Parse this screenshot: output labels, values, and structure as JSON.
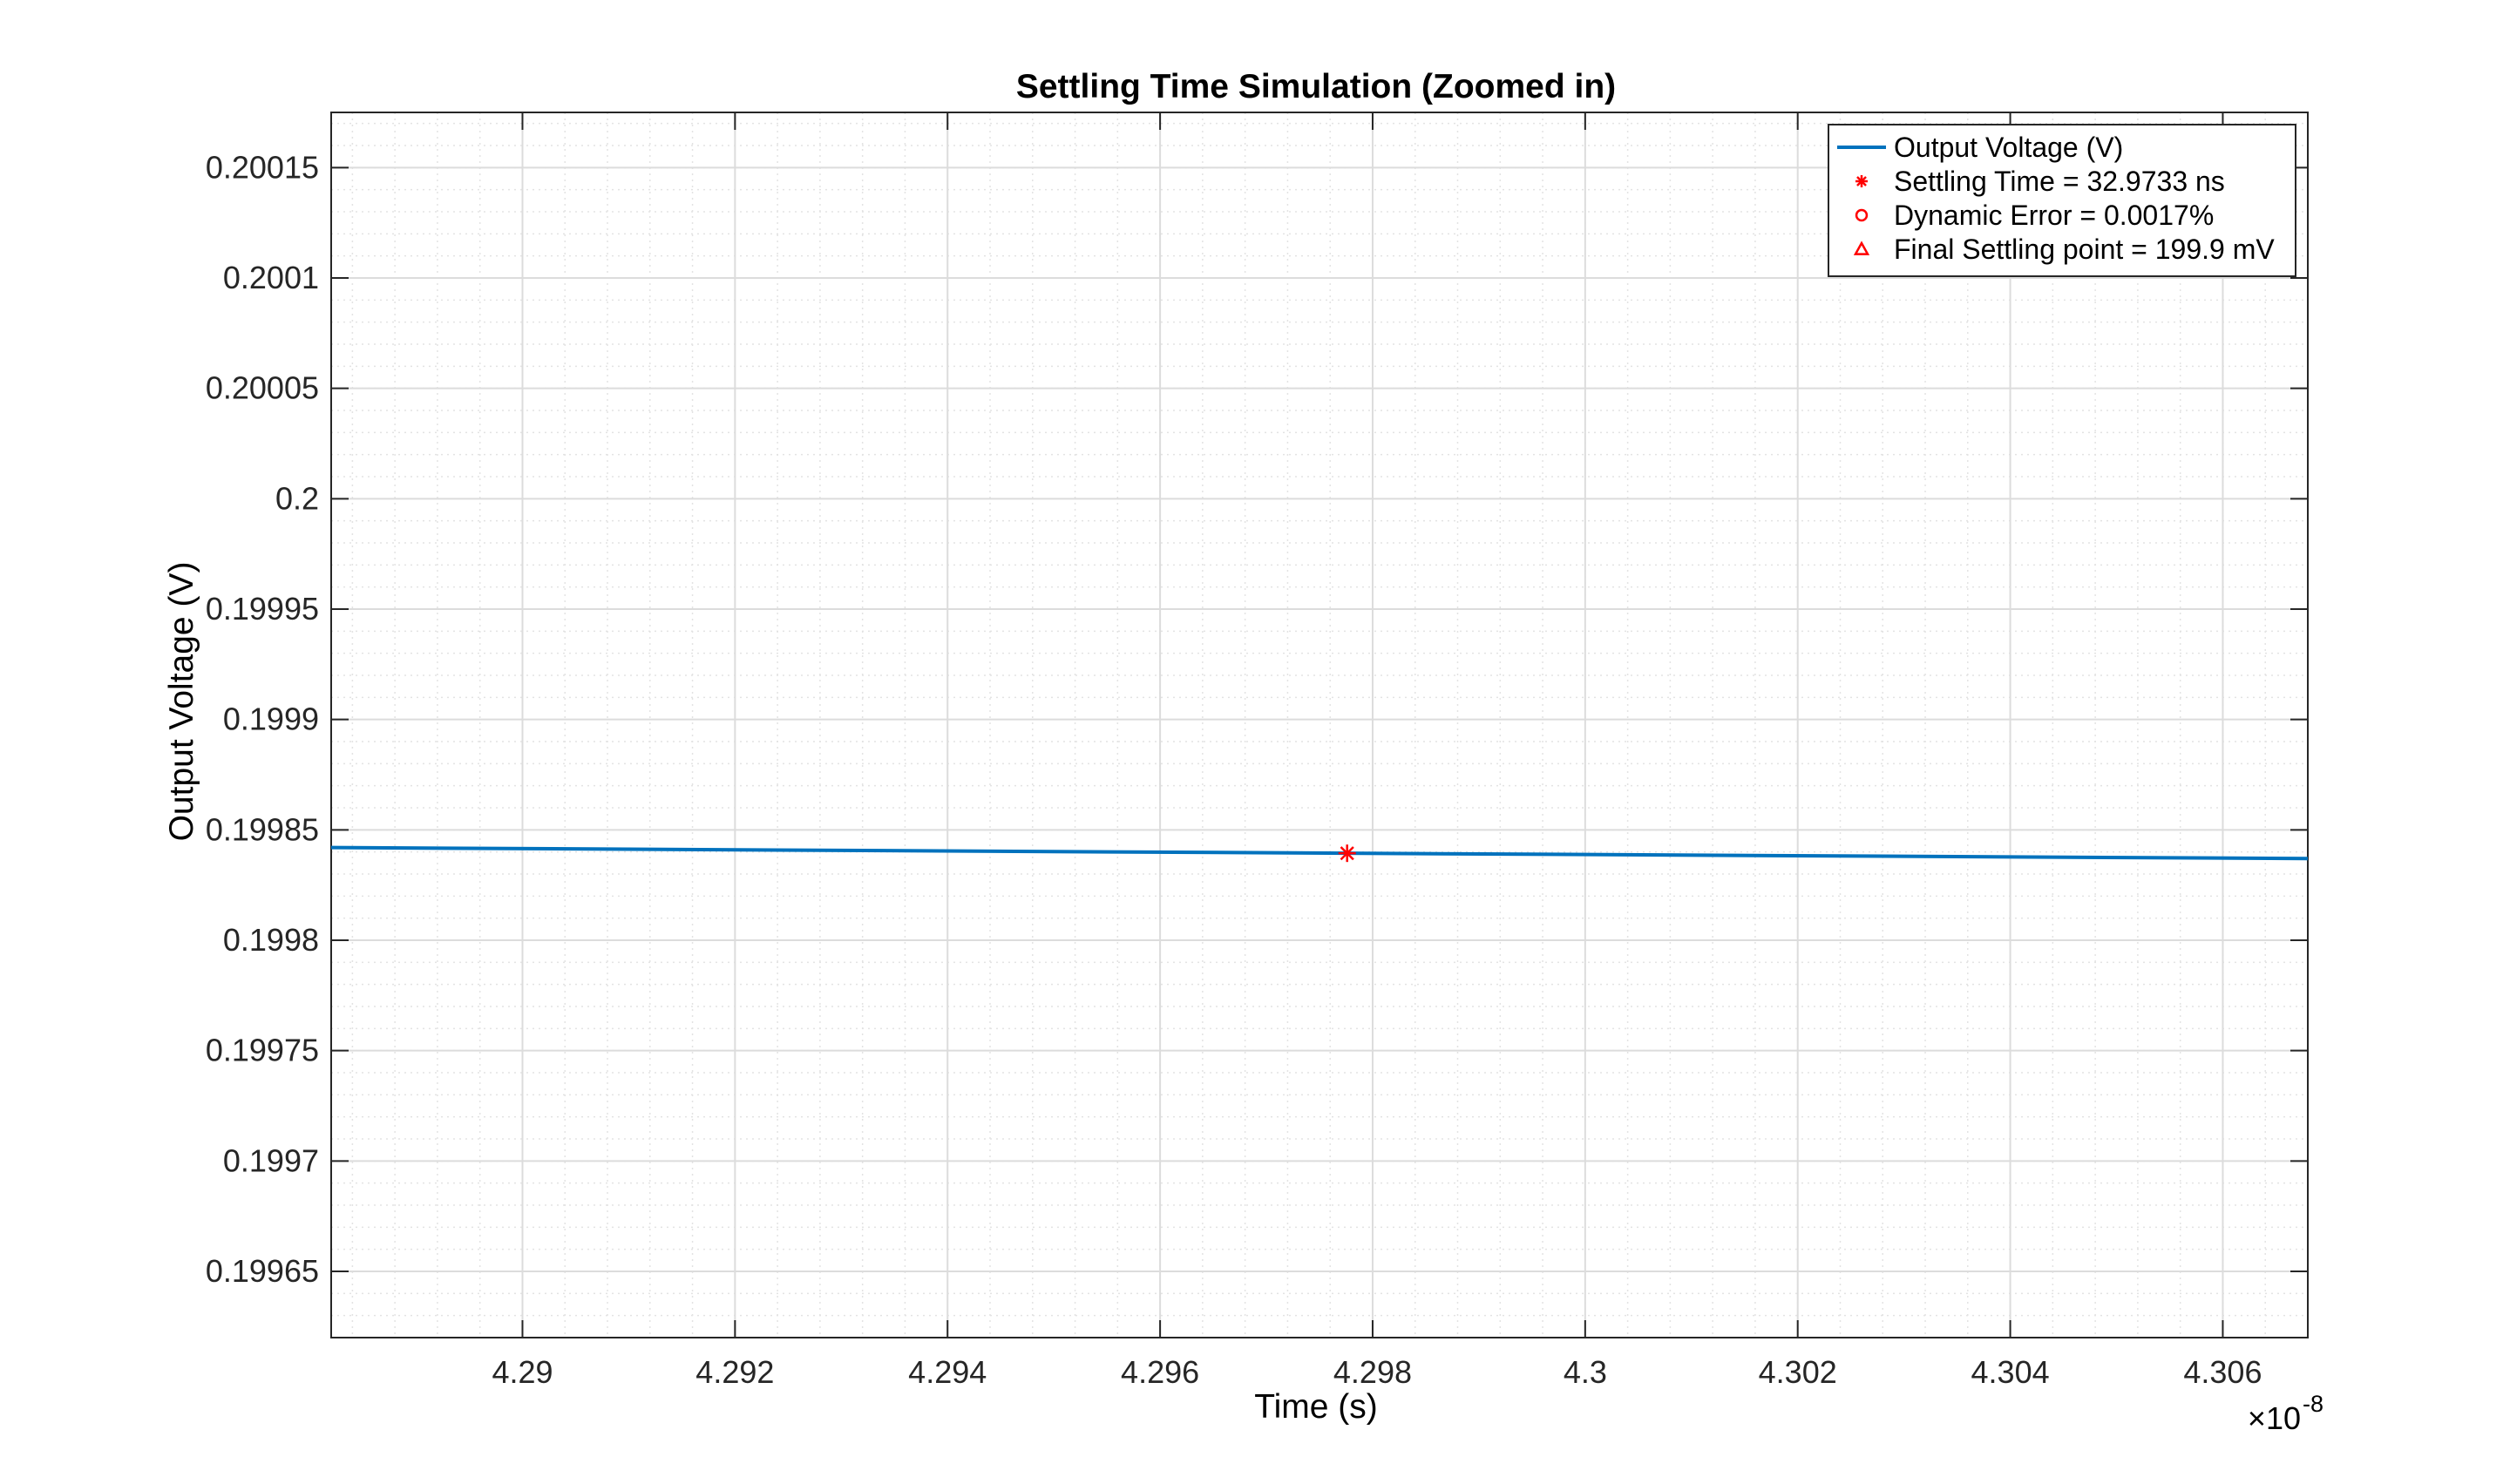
{
  "chart_data": {
    "type": "line",
    "title": "Settling Time Simulation (Zoomed in)",
    "xlabel": "Time (s)",
    "ylabel": "Output Voltage (V)",
    "x_exponent_label": "×10",
    "x_exponent": "-8",
    "xlim": [
      4.2882e-08,
      4.3068e-08
    ],
    "ylim": [
      0.19962,
      0.200175
    ],
    "x_ticks": [
      4.29e-08,
      4.292e-08,
      4.294e-08,
      4.296e-08,
      4.298e-08,
      4.3e-08,
      4.302e-08,
      4.304e-08,
      4.306e-08
    ],
    "x_tick_labels": [
      "4.29",
      "4.292",
      "4.294",
      "4.296",
      "4.298",
      "4.3",
      "4.302",
      "4.304",
      "4.306"
    ],
    "y_ticks": [
      0.19965,
      0.1997,
      0.19975,
      0.1998,
      0.19985,
      0.1999,
      0.19995,
      0.2,
      0.20005,
      0.2001,
      0.20015
    ],
    "y_tick_labels": [
      "0.19965",
      "0.1997",
      "0.19975",
      "0.1998",
      "0.19985",
      "0.1999",
      "0.19995",
      "0.2",
      "0.20005",
      "0.2001",
      "0.20015"
    ],
    "grid": true,
    "minor_grid": true,
    "legend_position": "top-right",
    "series": [
      {
        "name": "Output Voltage (V)",
        "kind": "line",
        "color": "#0072BD",
        "x": [
          4.2882e-08,
          4.3068e-08
        ],
        "y": [
          0.199842,
          0.199837
        ]
      },
      {
        "name": "Settling Time = 32.9733 ns",
        "kind": "marker",
        "marker": "asterisk",
        "color": "#FF0000",
        "x": [
          4.29776e-08
        ],
        "y": [
          0.1998394
        ]
      },
      {
        "name": "Dynamic Error = 0.0017%",
        "kind": "marker",
        "marker": "circle",
        "color": "#FF0000",
        "x": [],
        "y": []
      },
      {
        "name": "Final Settling point = 199.9 mV",
        "kind": "marker",
        "marker": "triangle",
        "color": "#FF0000",
        "x": [],
        "y": []
      }
    ]
  }
}
